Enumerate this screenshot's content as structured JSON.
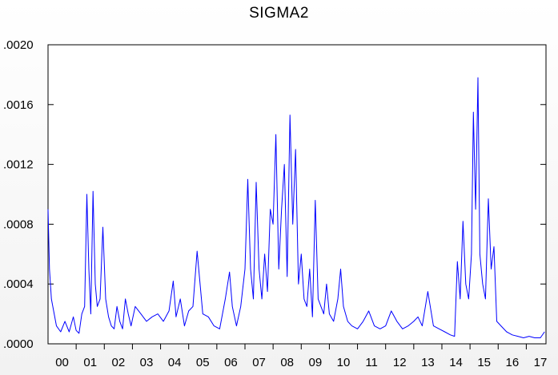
{
  "chart_data": {
    "type": "line",
    "title": "SIGMA2",
    "xlabel": "",
    "ylabel": "",
    "ylim": [
      0,
      0.002
    ],
    "xlim": [
      2000,
      2017.7
    ],
    "grid": false,
    "line_color": "#0000ff",
    "y_ticks": [
      {
        "value": 0.0,
        "label": ".0000"
      },
      {
        "value": 0.0004,
        "label": ".0004"
      },
      {
        "value": 0.0008,
        "label": ".0008"
      },
      {
        "value": 0.0012,
        "label": ".0012"
      },
      {
        "value": 0.0016,
        "label": ".0016"
      },
      {
        "value": 0.002,
        "label": ".0020"
      }
    ],
    "x_ticks": [
      "00",
      "01",
      "02",
      "03",
      "04",
      "05",
      "06",
      "07",
      "08",
      "09",
      "10",
      "11",
      "12",
      "13",
      "14",
      "15",
      "16",
      "17"
    ],
    "series": [
      {
        "x": [
          2000.0,
          2000.05,
          2000.12,
          2000.2,
          2000.3,
          2000.45,
          2000.6,
          2000.75,
          2000.9,
          2001.0,
          2001.1,
          2001.2,
          2001.3,
          2001.38,
          2001.45,
          2001.52,
          2001.6,
          2001.68,
          2001.75,
          2001.85,
          2001.95,
          2002.05,
          2002.15,
          2002.25,
          2002.35,
          2002.45,
          2002.55,
          2002.65,
          2002.75,
          2002.85,
          2002.95,
          2003.1,
          2003.3,
          2003.5,
          2003.7,
          2003.9,
          2004.1,
          2004.3,
          2004.45,
          2004.55,
          2004.7,
          2004.85,
          2005.0,
          2005.15,
          2005.3,
          2005.5,
          2005.7,
          2005.9,
          2006.1,
          2006.3,
          2006.45,
          2006.55,
          2006.7,
          2006.85,
          2007.0,
          2007.1,
          2007.2,
          2007.3,
          2007.4,
          2007.5,
          2007.6,
          2007.7,
          2007.8,
          2007.9,
          2008.0,
          2008.1,
          2008.2,
          2008.3,
          2008.4,
          2008.5,
          2008.6,
          2008.7,
          2008.8,
          2008.9,
          2009.0,
          2009.1,
          2009.2,
          2009.3,
          2009.4,
          2009.5,
          2009.6,
          2009.7,
          2009.8,
          2009.9,
          2010.0,
          2010.15,
          2010.3,
          2010.4,
          2010.5,
          2010.65,
          2010.8,
          2011.0,
          2011.2,
          2011.4,
          2011.6,
          2011.8,
          2012.0,
          2012.2,
          2012.4,
          2012.6,
          2012.8,
          2013.0,
          2013.15,
          2013.3,
          2013.5,
          2013.7,
          2013.9,
          2014.1,
          2014.3,
          2014.45,
          2014.55,
          2014.65,
          2014.75,
          2014.85,
          2014.95,
          2015.05,
          2015.12,
          2015.2,
          2015.28,
          2015.35,
          2015.45,
          2015.55,
          2015.65,
          2015.75,
          2015.85,
          2015.95,
          2016.1,
          2016.3,
          2016.5,
          2016.7,
          2016.9,
          2017.1,
          2017.3,
          2017.5,
          2017.65
        ],
        "y": [
          0.0009,
          0.0005,
          0.0003,
          0.00022,
          0.00012,
          8e-05,
          0.00015,
          8e-05,
          0.00018,
          9e-05,
          7e-05,
          0.0002,
          0.00025,
          0.001,
          0.0005,
          0.0002,
          0.00102,
          0.0004,
          0.00025,
          0.0003,
          0.00078,
          0.0003,
          0.00018,
          0.00012,
          0.0001,
          0.00025,
          0.00015,
          0.0001,
          0.0003,
          0.0002,
          0.00012,
          0.00025,
          0.0002,
          0.00015,
          0.00018,
          0.0002,
          0.00015,
          0.00022,
          0.00042,
          0.00018,
          0.0003,
          0.00012,
          0.00022,
          0.00025,
          0.00062,
          0.0002,
          0.00018,
          0.00012,
          0.0001,
          0.0003,
          0.00048,
          0.00025,
          0.00012,
          0.00025,
          0.0005,
          0.0011,
          0.0005,
          0.0003,
          0.00108,
          0.0005,
          0.0003,
          0.0006,
          0.00035,
          0.0009,
          0.0008,
          0.0014,
          0.0005,
          0.0009,
          0.0012,
          0.00045,
          0.00153,
          0.0008,
          0.0013,
          0.0004,
          0.0006,
          0.0003,
          0.00025,
          0.0005,
          0.00018,
          0.00096,
          0.0003,
          0.00025,
          0.0002,
          0.0004,
          0.0002,
          0.00015,
          0.0003,
          0.0005,
          0.00025,
          0.00015,
          0.00012,
          0.0001,
          0.00015,
          0.00022,
          0.00012,
          0.0001,
          0.00012,
          0.00022,
          0.00015,
          0.0001,
          0.00012,
          0.00015,
          0.00018,
          0.00012,
          0.00035,
          0.00012,
          0.0001,
          8e-05,
          6e-05,
          5e-05,
          0.00055,
          0.0003,
          0.00082,
          0.0004,
          0.0003,
          0.0006,
          0.00155,
          0.0009,
          0.00178,
          0.0006,
          0.0004,
          0.0003,
          0.00097,
          0.0005,
          0.00065,
          0.00015,
          0.00012,
          8e-05,
          6e-05,
          5e-05,
          4e-05,
          5e-05,
          4e-05,
          4e-05,
          8e-05
        ]
      }
    ]
  }
}
